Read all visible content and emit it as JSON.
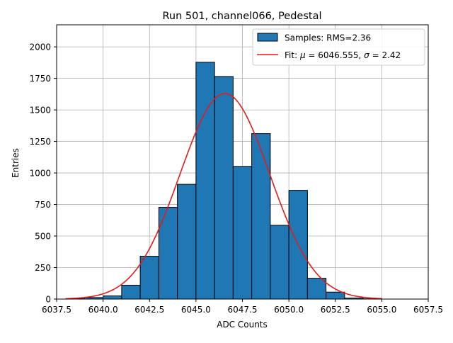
{
  "chart_data": {
    "type": "bar",
    "title": "Run 501, channel066, Pedestal",
    "xlabel": "ADC Counts",
    "ylabel": "Entries",
    "xlim": [
      6037.5,
      6057.5
    ],
    "ylim": [
      0,
      2175
    ],
    "xticks": [
      6037.5,
      6040.0,
      6042.5,
      6045.0,
      6047.5,
      6050.0,
      6052.5,
      6055.0,
      6057.5
    ],
    "xtick_labels": [
      "6037.5",
      "6040.0",
      "6042.5",
      "6045.0",
      "6047.5",
      "6050.0",
      "6052.5",
      "6055.0",
      "6057.5"
    ],
    "yticks": [
      0,
      250,
      500,
      750,
      1000,
      1250,
      1500,
      1750,
      2000
    ],
    "ytick_labels": [
      "0",
      "250",
      "500",
      "750",
      "1000",
      "1250",
      "1500",
      "1750",
      "2000"
    ],
    "grid": true,
    "legend_position": "top-right",
    "histogram": {
      "name": "Samples: RMS=2.36",
      "bin_edges": [
        6038,
        6039,
        6040,
        6041,
        6042,
        6043,
        6044,
        6045,
        6046,
        6047,
        6048,
        6049,
        6050,
        6051,
        6052,
        6053,
        6054,
        6055
      ],
      "counts": [
        3,
        12,
        25,
        110,
        340,
        728,
        910,
        1878,
        1765,
        1052,
        1312,
        585,
        862,
        165,
        55,
        8,
        2
      ],
      "color": "#1f77b4",
      "edgecolor": "#000000"
    },
    "fit": {
      "name": "Fit: μ = 6046.555, σ = 2.42",
      "legend_label": {
        "prefix": "Fit: ",
        "mu_symbol": "μ",
        "mu_text": " = 6046.555, ",
        "sigma_symbol": "σ",
        "sigma_text": " = 2.42"
      },
      "type": "gaussian",
      "mu": 6046.555,
      "sigma": 2.42,
      "amplitude": 1630,
      "x_range": [
        6038,
        6055
      ],
      "color": "#e41a1c"
    }
  }
}
